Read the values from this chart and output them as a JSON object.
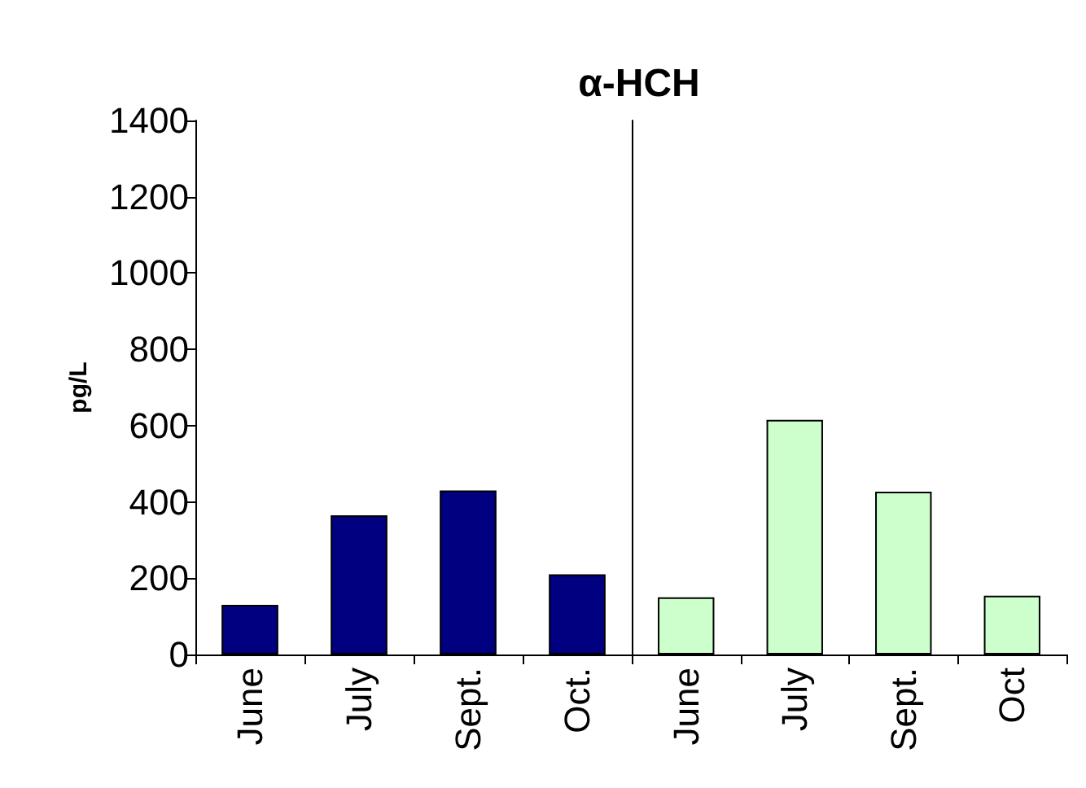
{
  "chart_data": [
    {
      "type": "bar",
      "title": "α-HCH",
      "ylabel": "pg/L",
      "categories": [
        "June",
        "July",
        "Sept.",
        "Oct."
      ],
      "series": [
        {
          "color": "#000080",
          "values": [
            130,
            365,
            430,
            210
          ]
        }
      ],
      "ylim": [
        0,
        1400
      ],
      "yticks": [
        0,
        200,
        400,
        600,
        800,
        1000,
        1200,
        1400
      ],
      "grid": false
    },
    {
      "type": "bar",
      "categories": [
        "June",
        "July",
        "Sept.",
        "Oct"
      ],
      "series": [
        {
          "color": "#ccffcc",
          "values": [
            150,
            615,
            427,
            154
          ]
        }
      ],
      "ylim": [
        0,
        1400
      ],
      "yticks": [
        0,
        200,
        400,
        600,
        800,
        1000,
        1200,
        1400
      ],
      "grid": false,
      "tick_labels": "x"
    }
  ]
}
